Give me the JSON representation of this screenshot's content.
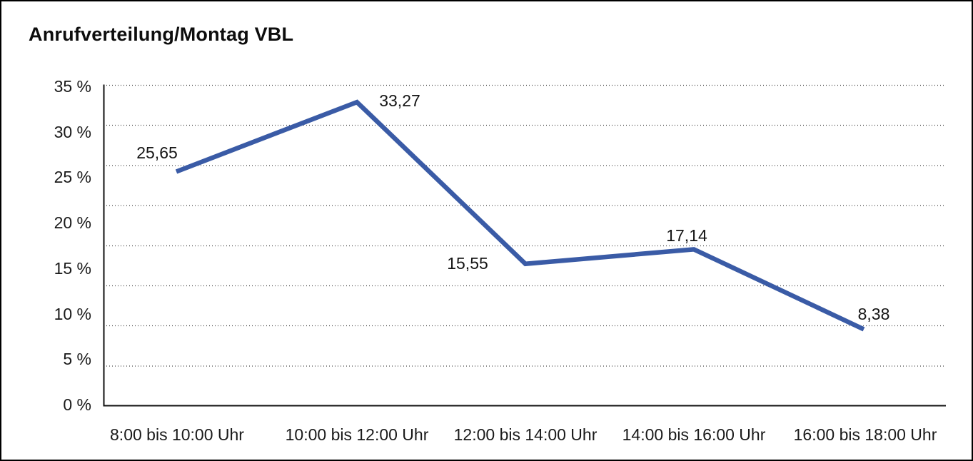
{
  "window": {
    "title": "Anrufverteilung/Montag VBL"
  },
  "chart_data": {
    "type": "line",
    "title": "Anrufverteilung/Montag VBL",
    "categories": [
      "8:00 bis 10:00 Uhr",
      "10:00 bis 12:00 Uhr",
      "12:00 bis 14:00 Uhr",
      "14:00 bis 16:00 Uhr",
      "16:00 bis 18:00 Uhr"
    ],
    "series": [
      {
        "name": "Anrufverteilung Montag VBL",
        "values": [
          25.65,
          33.27,
          15.55,
          17.14,
          8.38
        ]
      }
    ],
    "values": [
      25.65,
      33.27,
      15.55,
      17.14,
      8.38
    ],
    "values_display": [
      "25,65",
      "33,27",
      "15,55",
      "17,14",
      "8,38"
    ],
    "unit": "%",
    "xlabel": "",
    "ylabel": "",
    "ylim": [
      0,
      35
    ],
    "ytick_step": 5,
    "ytick_labels": [
      "35 %",
      "30 %",
      "25 %",
      "20 %",
      "15 %",
      "10 %",
      "5 %",
      "0 %"
    ],
    "grid": "horizontal-dotted",
    "legend": "none",
    "line_color": "#3A5BA6",
    "background_color": "#ffffff",
    "border_color": "#000000"
  }
}
